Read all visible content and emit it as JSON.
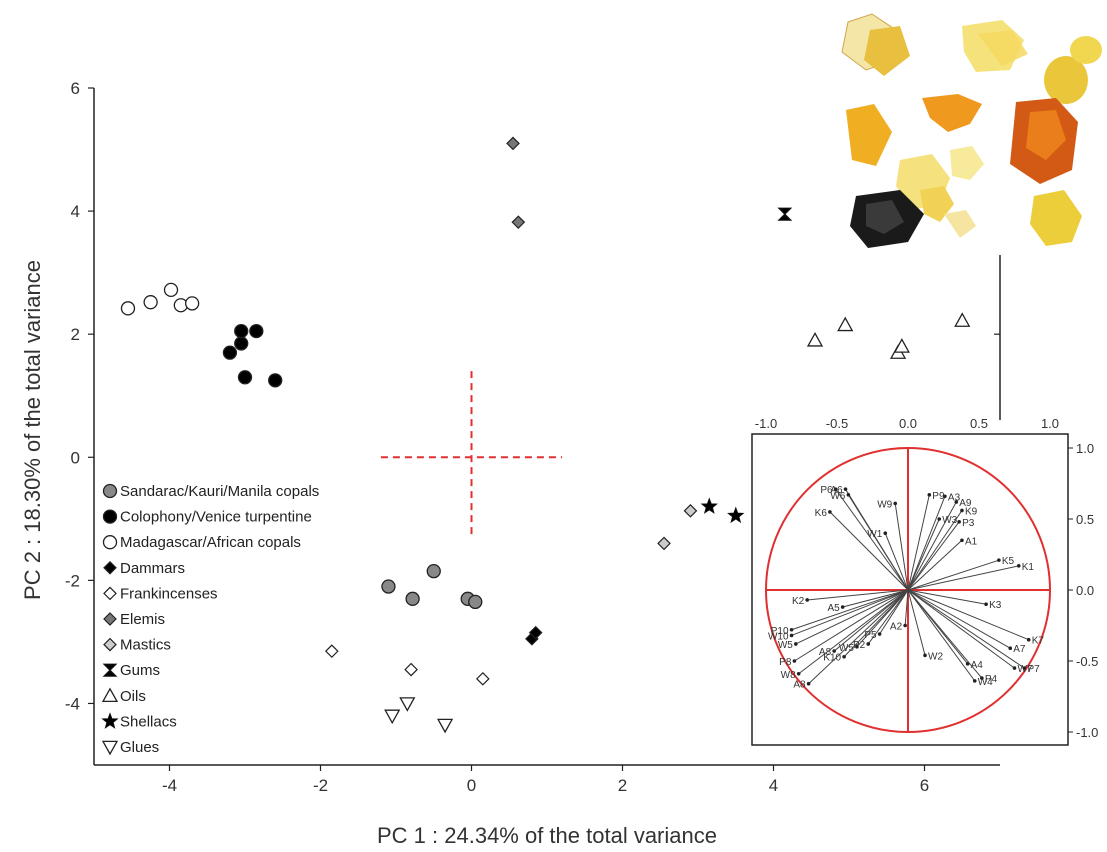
{
  "chart_data": [
    {
      "type": "scatter",
      "title": "",
      "xlabel": "PC 1 : 24.34% of the total variance",
      "ylabel": "PC 2 : 18.30% of the total variance",
      "xlim": [
        -5,
        7
      ],
      "ylim": [
        -5,
        6
      ],
      "xticks": [
        -4,
        -2,
        0,
        2,
        4,
        6
      ],
      "yticks": [
        -4,
        -2,
        0,
        2,
        4,
        6
      ],
      "grid": false,
      "legend_position": "bottom-left",
      "origin_cross_color": "#e03030",
      "series": [
        {
          "name": "Sandarac/Kauri/Manila  copals",
          "marker": "circle",
          "fill": "#888888",
          "points": [
            [
              -1.1,
              -2.1
            ],
            [
              -0.78,
              -2.3
            ],
            [
              -0.5,
              -1.85
            ],
            [
              -0.05,
              -2.3
            ],
            [
              0.05,
              -2.35
            ]
          ]
        },
        {
          "name": "Colophony/Venice turpentine",
          "marker": "circle",
          "fill": "#000000",
          "points": [
            [
              -3.2,
              1.7
            ],
            [
              -3.05,
              1.85
            ],
            [
              -3.05,
              2.05
            ],
            [
              -2.85,
              2.05
            ],
            [
              -3.0,
              1.3
            ],
            [
              -2.6,
              1.25
            ]
          ]
        },
        {
          "name": "Madagascar/African copals",
          "marker": "circle",
          "fill": "#ffffff",
          "points": [
            [
              -4.55,
              2.42
            ],
            [
              -4.25,
              2.52
            ],
            [
              -3.98,
              2.72
            ],
            [
              -3.85,
              2.47
            ],
            [
              -3.7,
              2.5
            ]
          ]
        },
        {
          "name": "Dammars",
          "marker": "diamond",
          "fill": "#000000",
          "points": [
            [
              0.8,
              -2.95
            ],
            [
              0.85,
              -2.85
            ]
          ]
        },
        {
          "name": "Frankincenses",
          "marker": "diamond",
          "fill": "#ffffff",
          "points": [
            [
              -1.85,
              -3.15
            ],
            [
              -0.8,
              -3.45
            ],
            [
              0.15,
              -3.6
            ]
          ]
        },
        {
          "name": "Elemis",
          "marker": "diamond",
          "fill": "#777777",
          "points": [
            [
              0.55,
              5.1
            ],
            [
              0.62,
              3.82
            ]
          ]
        },
        {
          "name": "Mastics",
          "marker": "diamond",
          "fill": "#cccccc",
          "points": [
            [
              2.55,
              -1.4
            ],
            [
              2.9,
              -0.87
            ]
          ]
        },
        {
          "name": "Gums",
          "marker": "hourglass",
          "fill": "#000000",
          "points": [
            [
              4.15,
              3.95
            ]
          ]
        },
        {
          "name": "Oils",
          "marker": "triangle-up",
          "fill": "#ffffff",
          "points": [
            [
              4.55,
              1.9
            ],
            [
              4.95,
              2.15
            ],
            [
              5.65,
              1.7
            ],
            [
              5.7,
              1.8
            ],
            [
              6.5,
              2.22
            ]
          ]
        },
        {
          "name": "Shellacs",
          "marker": "star",
          "fill": "#000000",
          "points": [
            [
              3.15,
              -0.8
            ],
            [
              3.5,
              -0.95
            ]
          ]
        },
        {
          "name": "Glues",
          "marker": "triangle-down",
          "fill": "#ffffff",
          "points": [
            [
              -1.05,
              -4.2
            ],
            [
              -0.85,
              -4.0
            ],
            [
              -0.35,
              -4.35
            ]
          ]
        }
      ]
    },
    {
      "type": "scatter",
      "title": "",
      "subtype": "correlation-circle",
      "xlabel": "",
      "ylabel": "",
      "xlim": [
        -1.0,
        1.0
      ],
      "ylim": [
        -1.0,
        1.0
      ],
      "xticks": [
        "-1.0",
        "-0.5",
        "0.0",
        "0.5",
        "1.0"
      ],
      "yticks": [
        "1.0",
        "0.5",
        "0.0",
        "-0.5",
        "-1.0"
      ],
      "circle_color": "#e03030",
      "loadings": [
        {
          "label": "P6",
          "x": -0.51,
          "y": 0.71
        },
        {
          "label": "A6",
          "x": -0.44,
          "y": 0.71
        },
        {
          "label": "W6",
          "x": -0.42,
          "y": 0.67
        },
        {
          "label": "K6",
          "x": -0.55,
          "y": 0.55
        },
        {
          "label": "W9",
          "x": -0.09,
          "y": 0.61
        },
        {
          "label": "P9",
          "x": 0.15,
          "y": 0.67
        },
        {
          "label": "A3",
          "x": 0.26,
          "y": 0.66
        },
        {
          "label": "A9",
          "x": 0.34,
          "y": 0.62
        },
        {
          "label": "K9",
          "x": 0.38,
          "y": 0.56
        },
        {
          "label": "W3",
          "x": 0.22,
          "y": 0.5
        },
        {
          "label": "P3",
          "x": 0.36,
          "y": 0.48
        },
        {
          "label": "A1",
          "x": 0.38,
          "y": 0.35
        },
        {
          "label": "W1",
          "x": -0.16,
          "y": 0.4
        },
        {
          "label": "K5",
          "x": 0.64,
          "y": 0.21
        },
        {
          "label": "K1",
          "x": 0.78,
          "y": 0.17
        },
        {
          "label": "K2",
          "x": -0.71,
          "y": -0.07
        },
        {
          "label": "A5",
          "x": -0.46,
          "y": -0.12
        },
        {
          "label": "K3",
          "x": 0.55,
          "y": -0.1
        },
        {
          "label": "P10",
          "x": -0.82,
          "y": -0.28
        },
        {
          "label": "W10",
          "x": -0.82,
          "y": -0.32
        },
        {
          "label": "W5",
          "x": -0.79,
          "y": -0.38
        },
        {
          "label": "P5",
          "x": -0.2,
          "y": -0.31
        },
        {
          "label": "P2",
          "x": -0.28,
          "y": -0.38
        },
        {
          "label": "W5",
          "x": -0.36,
          "y": -0.4
        },
        {
          "label": "A8",
          "x": -0.52,
          "y": -0.43
        },
        {
          "label": "K10",
          "x": -0.45,
          "y": -0.47
        },
        {
          "label": "P8",
          "x": -0.8,
          "y": -0.5
        },
        {
          "label": "W8",
          "x": -0.77,
          "y": -0.59
        },
        {
          "label": "A8",
          "x": -0.7,
          "y": -0.66
        },
        {
          "label": "A2",
          "x": -0.02,
          "y": -0.25
        },
        {
          "label": "W2",
          "x": 0.12,
          "y": -0.46
        },
        {
          "label": "A4",
          "x": 0.42,
          "y": -0.52
        },
        {
          "label": "W4",
          "x": 0.47,
          "y": -0.64
        },
        {
          "label": "P4",
          "x": 0.52,
          "y": -0.62
        },
        {
          "label": "A7",
          "x": 0.72,
          "y": -0.41
        },
        {
          "label": "K7",
          "x": 0.85,
          "y": -0.35
        },
        {
          "label": "W7",
          "x": 0.75,
          "y": -0.55
        },
        {
          "label": "P7",
          "x": 0.82,
          "y": -0.55
        }
      ]
    }
  ],
  "decor": {
    "resin_photo_icon": "resin-pieces-photo"
  }
}
